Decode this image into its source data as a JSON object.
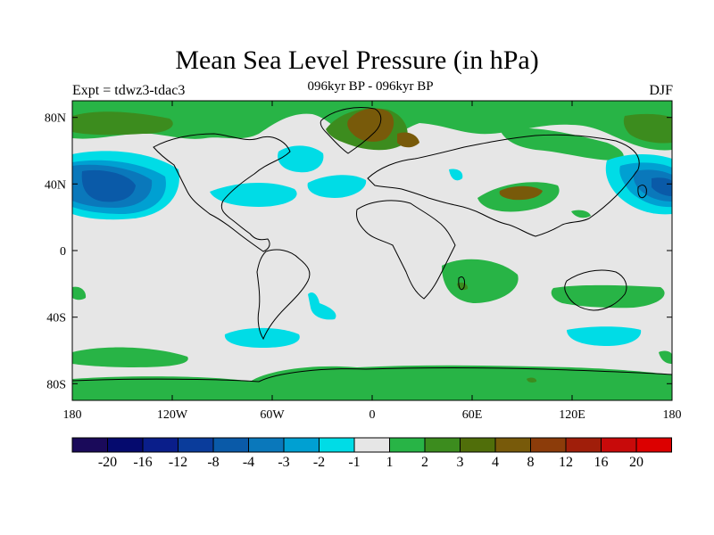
{
  "title": "Mean Sea Level Pressure (in hPa)",
  "subtitle": "096kyr BP - 096kyr BP",
  "left_label": "Expt = tdwz3-tdac3",
  "right_label": "DJF",
  "lon_ticks": [
    "180",
    "120W",
    "60W",
    "0",
    "60E",
    "120E",
    "180"
  ],
  "lat_ticks": [
    "80N",
    "40N",
    "0",
    "40S",
    "80S"
  ],
  "colorbar": {
    "colors": [
      "#1a0a5a",
      "#050a6e",
      "#0a1e8a",
      "#0a3c9b",
      "#0a5aa8",
      "#0a78bb",
      "#00a0d2",
      "#00dce6",
      "#e6e6e6",
      "#28b446",
      "#3c8c1e",
      "#506e0a",
      "#785a0a",
      "#8c3c0a",
      "#a01e0a",
      "#c80a0a",
      "#dc0000"
    ],
    "labels": [
      "-20",
      "-16",
      "-12",
      "-8",
      "-4",
      "-3",
      "-2",
      "-1",
      "1",
      "2",
      "3",
      "4",
      "8",
      "12",
      "16",
      "20"
    ]
  },
  "colors": {
    "background": "#e6e6e6",
    "green": "#28b446",
    "dark_green": "#3c8c1e",
    "brown": "#785a0a",
    "cyan": "#00dce6",
    "light_blue": "#00a0d2",
    "mid_blue": "#0a78bb",
    "blue": "#0a5aa8"
  }
}
